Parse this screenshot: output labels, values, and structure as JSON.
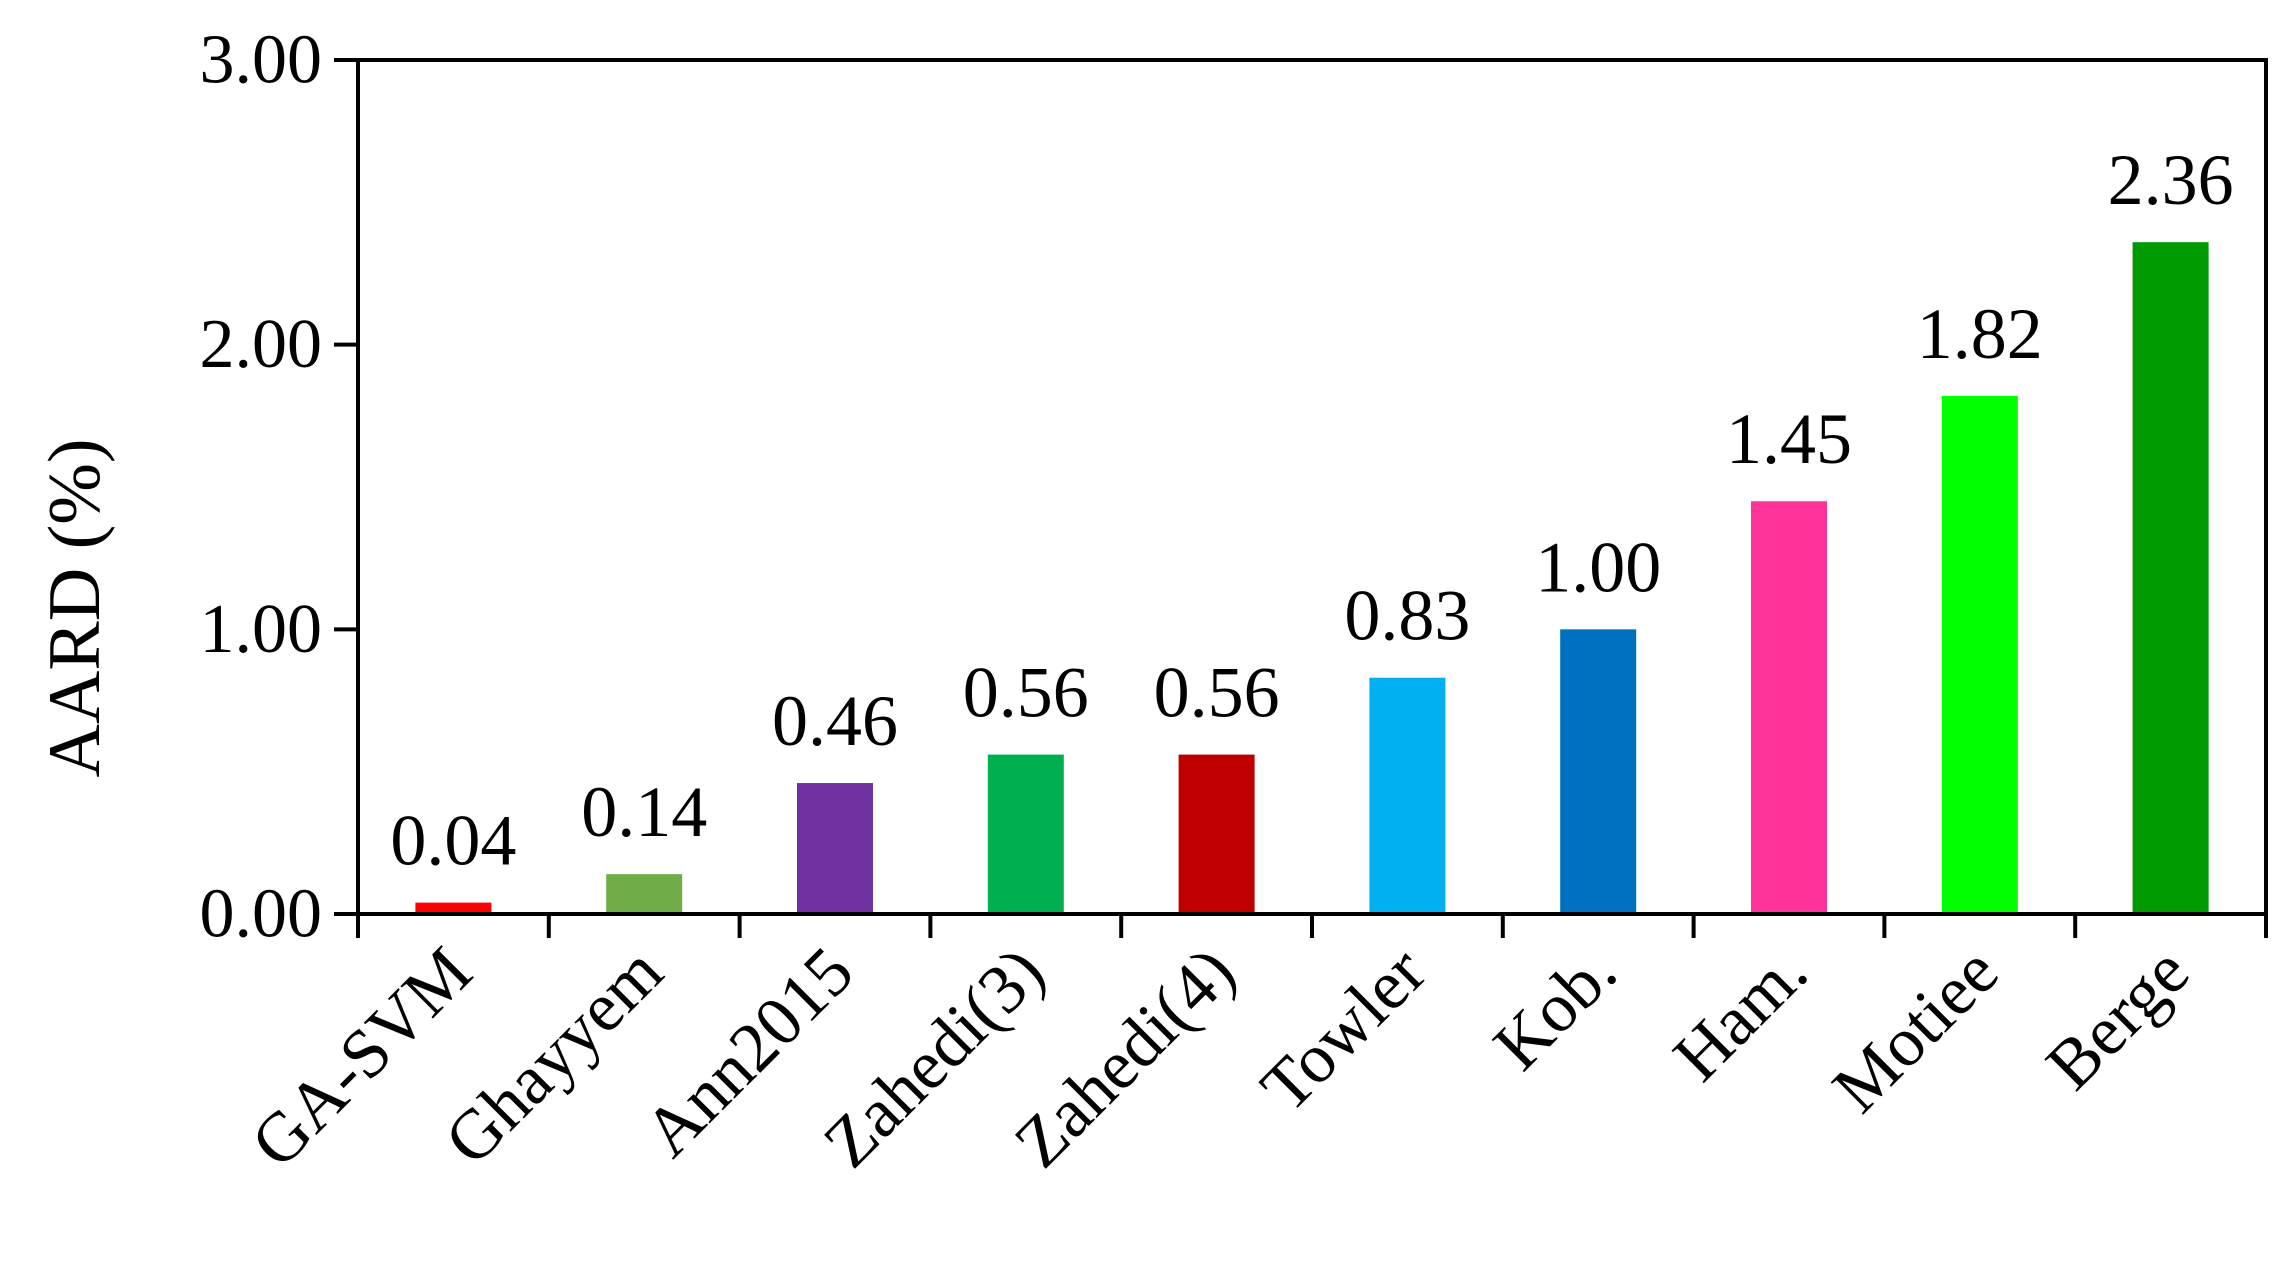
{
  "chart_data": {
    "type": "bar",
    "title": "",
    "xlabel": "",
    "ylabel": "AARD (%)",
    "ylim": [
      0,
      3
    ],
    "yticks": [
      "0.00",
      "1.00",
      "2.00",
      "3.00"
    ],
    "grid": false,
    "legend": "none",
    "categories": [
      "GA-SVM",
      "Ghayyem",
      "Ann2015",
      "Zahedi(3)",
      "Zahedi(4)",
      "Towler",
      "Kob.",
      "Ham.",
      "Motiee",
      "Berge"
    ],
    "values": [
      0.04,
      0.14,
      0.46,
      0.56,
      0.56,
      0.83,
      1.0,
      1.45,
      1.82,
      2.36
    ],
    "data_labels": [
      "0.04",
      "0.14",
      "0.46",
      "0.56",
      "0.56",
      "0.83",
      "1.00",
      "1.45",
      "1.82",
      "2.36"
    ],
    "colors": [
      "#FF0000",
      "#70AD47",
      "#7030A0",
      "#00B050",
      "#C00000",
      "#00B0F0",
      "#0070C0",
      "#FF3399",
      "#00FF00",
      "#009900"
    ]
  }
}
